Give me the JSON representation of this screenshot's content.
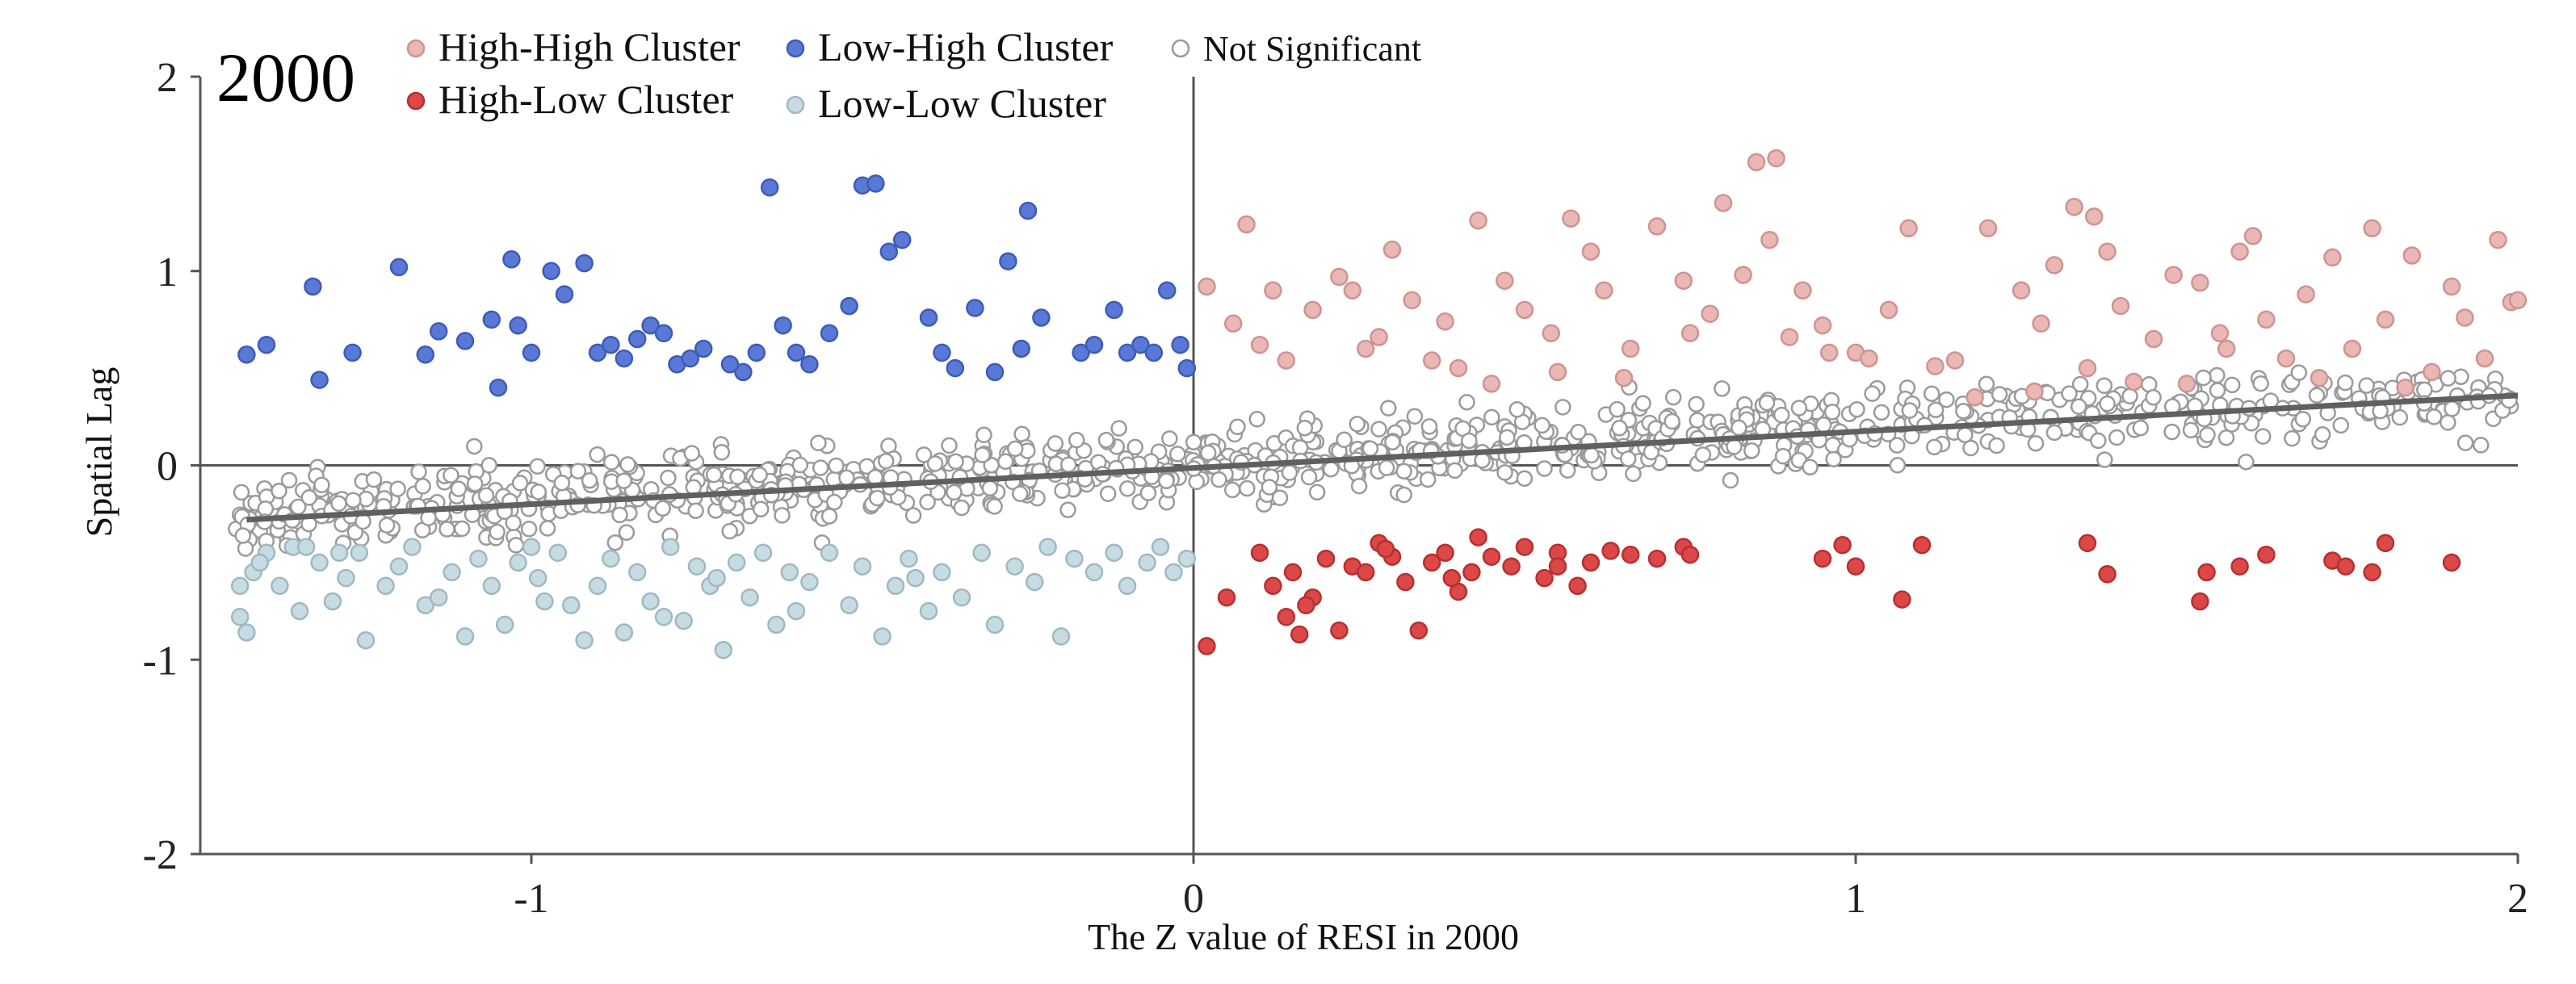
{
  "chart_data": {
    "type": "scatter",
    "title": "2000",
    "xlabel": "The Z value of RESI in 2000",
    "ylabel": "Spatial  Lag",
    "xlim": [
      -1.5,
      2
    ],
    "ylim": [
      -2,
      2
    ],
    "x_ticks": [
      -1,
      0,
      1,
      2
    ],
    "x_tick_labels": [
      "-1",
      "0",
      "1",
      "2"
    ],
    "y_ticks": [
      -2,
      -1,
      0,
      1,
      2
    ],
    "y_tick_labels": [
      "-2",
      "-1",
      "0",
      "1",
      "2"
    ],
    "grid": false,
    "legend_position": "top",
    "regression_line": {
      "x0": -1.43,
      "y0": -0.28,
      "x1": 2.0,
      "y1": 0.36,
      "color": "#606060"
    },
    "legend": [
      {
        "name": "High-High Cluster",
        "color": "#e9b7b4",
        "stroke": "#cf9391"
      },
      {
        "name": "Low-High Cluster",
        "color": "#5a79d6",
        "stroke": "#3d5bb8"
      },
      {
        "name": "Not Significant",
        "color": "#ffffff",
        "stroke": "#9a9a9a"
      },
      {
        "name": "High-Low Cluster",
        "color": "#dc4747",
        "stroke": "#b63030"
      },
      {
        "name": "Low-Low Cluster",
        "color": "#c7dbe3",
        "stroke": "#9fb8c4"
      }
    ],
    "series": [
      {
        "name": "High-High Cluster",
        "color": "#e9b7b4",
        "stroke": "#cf9391",
        "points": [
          [
            0.02,
            0.92
          ],
          [
            0.06,
            0.73
          ],
          [
            0.08,
            1.24
          ],
          [
            0.1,
            0.62
          ],
          [
            0.12,
            0.9
          ],
          [
            0.14,
            0.54
          ],
          [
            0.18,
            0.8
          ],
          [
            0.22,
            0.97
          ],
          [
            0.24,
            0.9
          ],
          [
            0.26,
            0.6
          ],
          [
            0.28,
            0.66
          ],
          [
            0.3,
            1.11
          ],
          [
            0.33,
            0.85
          ],
          [
            0.36,
            0.54
          ],
          [
            0.38,
            0.74
          ],
          [
            0.4,
            0.5
          ],
          [
            0.43,
            1.26
          ],
          [
            0.47,
            0.95
          ],
          [
            0.5,
            0.8
          ],
          [
            0.54,
            0.68
          ],
          [
            0.57,
            1.27
          ],
          [
            0.6,
            1.1
          ],
          [
            0.62,
            0.9
          ],
          [
            0.66,
            0.6
          ],
          [
            0.7,
            1.23
          ],
          [
            0.74,
            0.95
          ],
          [
            0.78,
            0.78
          ],
          [
            0.8,
            1.35
          ],
          [
            0.83,
            0.98
          ],
          [
            0.85,
            1.56
          ],
          [
            0.88,
            1.58
          ],
          [
            0.87,
            1.16
          ],
          [
            0.92,
            0.9
          ],
          [
            0.95,
            0.72
          ],
          [
            1.0,
            0.58
          ],
          [
            1.05,
            0.8
          ],
          [
            1.08,
            1.22
          ],
          [
            1.12,
            0.51
          ],
          [
            1.15,
            0.54
          ],
          [
            1.2,
            1.22
          ],
          [
            1.25,
            0.9
          ],
          [
            1.28,
            0.73
          ],
          [
            1.3,
            1.03
          ],
          [
            1.33,
            1.33
          ],
          [
            1.36,
            1.28
          ],
          [
            1.38,
            1.1
          ],
          [
            1.4,
            0.82
          ],
          [
            1.42,
            0.43
          ],
          [
            1.45,
            0.65
          ],
          [
            1.48,
            0.98
          ],
          [
            1.52,
            0.94
          ],
          [
            1.55,
            0.68
          ],
          [
            1.58,
            1.1
          ],
          [
            1.6,
            1.18
          ],
          [
            1.62,
            0.75
          ],
          [
            1.65,
            0.55
          ],
          [
            1.68,
            0.88
          ],
          [
            1.72,
            1.07
          ],
          [
            1.75,
            0.6
          ],
          [
            1.78,
            1.22
          ],
          [
            1.8,
            0.75
          ],
          [
            1.84,
            1.08
          ],
          [
            1.87,
            0.48
          ],
          [
            1.9,
            0.92
          ],
          [
            1.92,
            0.76
          ],
          [
            1.95,
            0.55
          ],
          [
            1.97,
            1.16
          ],
          [
            1.99,
            0.84
          ],
          [
            2.0,
            0.85
          ],
          [
            0.96,
            0.58
          ],
          [
            1.18,
            0.35
          ],
          [
            1.35,
            0.5
          ],
          [
            1.5,
            0.42
          ],
          [
            1.7,
            0.45
          ],
          [
            0.65,
            0.45
          ],
          [
            0.45,
            0.42
          ],
          [
            0.55,
            0.48
          ],
          [
            0.75,
            0.68
          ],
          [
            0.9,
            0.66
          ],
          [
            1.02,
            0.55
          ],
          [
            1.27,
            0.38
          ],
          [
            1.56,
            0.6
          ],
          [
            1.83,
            0.4
          ]
        ]
      },
      {
        "name": "Low-High Cluster",
        "color": "#5a79d6",
        "stroke": "#3d5bb8",
        "points": [
          [
            -1.43,
            0.57
          ],
          [
            -1.4,
            0.62
          ],
          [
            -1.33,
            0.92
          ],
          [
            -1.32,
            0.44
          ],
          [
            -1.27,
            0.58
          ],
          [
            -1.2,
            1.02
          ],
          [
            -1.16,
            0.57
          ],
          [
            -1.14,
            0.69
          ],
          [
            -1.1,
            0.64
          ],
          [
            -1.06,
            0.75
          ],
          [
            -1.05,
            0.4
          ],
          [
            -1.03,
            1.06
          ],
          [
            -1.02,
            0.72
          ],
          [
            -1.0,
            0.58
          ],
          [
            -0.97,
            1.0
          ],
          [
            -0.95,
            0.88
          ],
          [
            -0.92,
            1.04
          ],
          [
            -0.9,
            0.58
          ],
          [
            -0.88,
            0.62
          ],
          [
            -0.86,
            0.55
          ],
          [
            -0.84,
            0.65
          ],
          [
            -0.82,
            0.72
          ],
          [
            -0.8,
            0.68
          ],
          [
            -0.78,
            0.52
          ],
          [
            -0.76,
            0.55
          ],
          [
            -0.74,
            0.6
          ],
          [
            -0.66,
            0.58
          ],
          [
            -0.64,
            1.43
          ],
          [
            -0.62,
            0.72
          ],
          [
            -0.6,
            0.58
          ],
          [
            -0.55,
            0.68
          ],
          [
            -0.52,
            0.82
          ],
          [
            -0.5,
            1.44
          ],
          [
            -0.48,
            1.45
          ],
          [
            -0.46,
            1.1
          ],
          [
            -0.44,
            1.16
          ],
          [
            -0.4,
            0.76
          ],
          [
            -0.38,
            0.58
          ],
          [
            -0.36,
            0.5
          ],
          [
            -0.33,
            0.81
          ],
          [
            -0.3,
            0.48
          ],
          [
            -0.28,
            1.05
          ],
          [
            -0.26,
            0.6
          ],
          [
            -0.25,
            1.31
          ],
          [
            -0.23,
            0.76
          ],
          [
            -0.17,
            0.58
          ],
          [
            -0.15,
            0.62
          ],
          [
            -0.12,
            0.8
          ],
          [
            -0.1,
            0.58
          ],
          [
            -0.08,
            0.62
          ],
          [
            -0.06,
            0.58
          ],
          [
            -0.04,
            0.9
          ],
          [
            -0.02,
            0.62
          ],
          [
            -0.01,
            0.5
          ],
          [
            -0.68,
            0.48
          ],
          [
            -0.7,
            0.52
          ],
          [
            -0.58,
            0.52
          ]
        ]
      },
      {
        "name": "High-Low Cluster",
        "color": "#dc4747",
        "stroke": "#b63030",
        "points": [
          [
            0.02,
            -0.93
          ],
          [
            0.05,
            -0.68
          ],
          [
            0.1,
            -0.45
          ],
          [
            0.12,
            -0.62
          ],
          [
            0.14,
            -0.78
          ],
          [
            0.16,
            -0.87
          ],
          [
            0.18,
            -0.68
          ],
          [
            0.2,
            -0.48
          ],
          [
            0.22,
            -0.85
          ],
          [
            0.24,
            -0.52
          ],
          [
            0.26,
            -0.55
          ],
          [
            0.28,
            -0.4
          ],
          [
            0.3,
            -0.47
          ],
          [
            0.32,
            -0.6
          ],
          [
            0.34,
            -0.85
          ],
          [
            0.36,
            -0.5
          ],
          [
            0.38,
            -0.45
          ],
          [
            0.4,
            -0.65
          ],
          [
            0.42,
            -0.55
          ],
          [
            0.45,
            -0.47
          ],
          [
            0.48,
            -0.52
          ],
          [
            0.5,
            -0.42
          ],
          [
            0.53,
            -0.58
          ],
          [
            0.55,
            -0.45
          ],
          [
            0.58,
            -0.62
          ],
          [
            0.6,
            -0.5
          ],
          [
            0.63,
            -0.44
          ],
          [
            0.66,
            -0.46
          ],
          [
            0.7,
            -0.48
          ],
          [
            0.74,
            -0.42
          ],
          [
            0.75,
            -0.46
          ],
          [
            0.95,
            -0.48
          ],
          [
            0.98,
            -0.41
          ],
          [
            1.0,
            -0.52
          ],
          [
            1.07,
            -0.69
          ],
          [
            1.1,
            -0.41
          ],
          [
            1.35,
            -0.4
          ],
          [
            1.38,
            -0.56
          ],
          [
            1.52,
            -0.7
          ],
          [
            1.53,
            -0.55
          ],
          [
            1.58,
            -0.52
          ],
          [
            1.62,
            -0.46
          ],
          [
            1.72,
            -0.49
          ],
          [
            1.74,
            -0.52
          ],
          [
            1.78,
            -0.55
          ],
          [
            1.8,
            -0.4
          ],
          [
            1.9,
            -0.5
          ],
          [
            0.15,
            -0.55
          ],
          [
            0.17,
            -0.72
          ],
          [
            0.29,
            -0.43
          ],
          [
            0.39,
            -0.58
          ],
          [
            0.43,
            -0.37
          ],
          [
            0.55,
            -0.52
          ]
        ]
      },
      {
        "name": "Low-Low Cluster",
        "color": "#c7dbe3",
        "stroke": "#9fb8c4",
        "points": [
          [
            -1.44,
            -0.78
          ],
          [
            -1.43,
            -0.86
          ],
          [
            -1.42,
            -0.55
          ],
          [
            -1.4,
            -0.45
          ],
          [
            -1.38,
            -0.62
          ],
          [
            -1.36,
            -0.42
          ],
          [
            -1.35,
            -0.75
          ],
          [
            -1.32,
            -0.5
          ],
          [
            -1.3,
            -0.7
          ],
          [
            -1.28,
            -0.58
          ],
          [
            -1.26,
            -0.45
          ],
          [
            -1.25,
            -0.9
          ],
          [
            -1.22,
            -0.62
          ],
          [
            -1.2,
            -0.52
          ],
          [
            -1.18,
            -0.42
          ],
          [
            -1.16,
            -0.72
          ],
          [
            -1.14,
            -0.68
          ],
          [
            -1.12,
            -0.55
          ],
          [
            -1.1,
            -0.88
          ],
          [
            -1.08,
            -0.48
          ],
          [
            -1.06,
            -0.62
          ],
          [
            -1.04,
            -0.82
          ],
          [
            -1.02,
            -0.5
          ],
          [
            -0.99,
            -0.58
          ],
          [
            -0.96,
            -0.45
          ],
          [
            -0.94,
            -0.72
          ],
          [
            -0.92,
            -0.9
          ],
          [
            -0.9,
            -0.62
          ],
          [
            -0.88,
            -0.48
          ],
          [
            -0.86,
            -0.86
          ],
          [
            -0.84,
            -0.55
          ],
          [
            -0.82,
            -0.7
          ],
          [
            -0.79,
            -0.42
          ],
          [
            -0.77,
            -0.8
          ],
          [
            -0.75,
            -0.52
          ],
          [
            -0.73,
            -0.62
          ],
          [
            -0.71,
            -0.95
          ],
          [
            -0.69,
            -0.5
          ],
          [
            -0.67,
            -0.68
          ],
          [
            -0.65,
            -0.45
          ],
          [
            -0.63,
            -0.82
          ],
          [
            -0.61,
            -0.55
          ],
          [
            -0.58,
            -0.6
          ],
          [
            -0.55,
            -0.45
          ],
          [
            -0.52,
            -0.72
          ],
          [
            -0.5,
            -0.52
          ],
          [
            -0.47,
            -0.88
          ],
          [
            -0.45,
            -0.62
          ],
          [
            -0.43,
            -0.48
          ],
          [
            -0.4,
            -0.75
          ],
          [
            -0.38,
            -0.55
          ],
          [
            -0.35,
            -0.68
          ],
          [
            -0.32,
            -0.45
          ],
          [
            -0.3,
            -0.82
          ],
          [
            -0.27,
            -0.52
          ],
          [
            -0.24,
            -0.6
          ],
          [
            -0.2,
            -0.88
          ],
          [
            -0.18,
            -0.48
          ],
          [
            -0.15,
            -0.55
          ],
          [
            -0.12,
            -0.45
          ],
          [
            -0.1,
            -0.62
          ],
          [
            -0.07,
            -0.5
          ],
          [
            -0.05,
            -0.42
          ],
          [
            -0.03,
            -0.55
          ],
          [
            -0.01,
            -0.48
          ],
          [
            -1.44,
            -0.62
          ],
          [
            -1.41,
            -0.5
          ],
          [
            -1.34,
            -0.42
          ],
          [
            -1.29,
            -0.45
          ],
          [
            -0.98,
            -0.7
          ],
          [
            -0.8,
            -0.78
          ],
          [
            -0.6,
            -0.75
          ],
          [
            -0.42,
            -0.58
          ],
          [
            -0.22,
            -0.42
          ],
          [
            -0.72,
            -0.58
          ],
          [
            -1.0,
            -0.42
          ]
        ]
      }
    ],
    "ns_count": 950,
    "ns_seed": 20001
  }
}
